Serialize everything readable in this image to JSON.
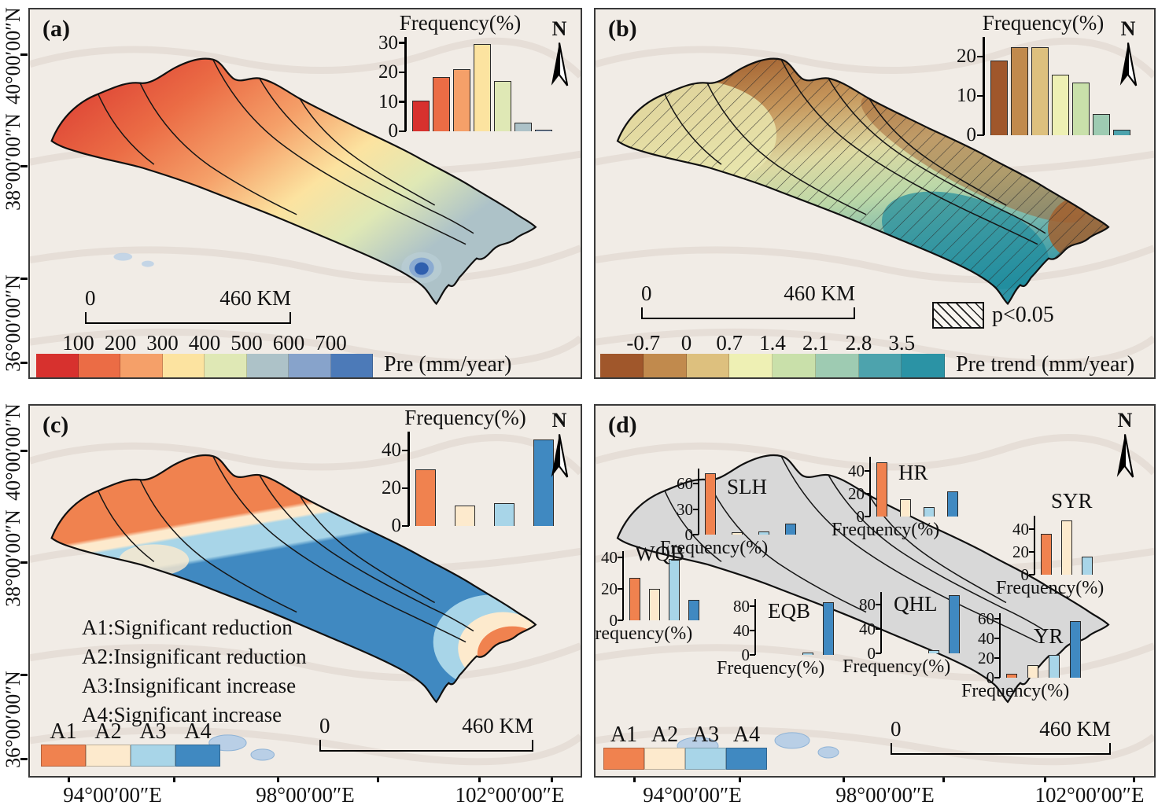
{
  "figure": {
    "north_label": "N"
  },
  "axes": {
    "lat_labels": [
      "40°00′00″N",
      "38°00′00″N",
      "36°00′00″N"
    ],
    "lon_labels": [
      "94°00′00″E",
      "98°00′00″E",
      "102°00′00″E"
    ]
  },
  "palette": {
    "pre_classes": [
      "#d7312e",
      "#eb6c45",
      "#f5a069",
      "#fce3a0",
      "#dfe8b5",
      "#adc2c8",
      "#87a3cb",
      "#4c7ab8"
    ],
    "trend_classes": [
      "#a0572b",
      "#c18a4d",
      "#ddc07e",
      "#eef0b4",
      "#c9e0aa",
      "#9ecbb2",
      "#4da3ad",
      "#2b93a5"
    ],
    "a_classes": [
      "#f0824f",
      "#fdeacd",
      "#a8d5e8",
      "#4089c1"
    ]
  },
  "panel_a": {
    "tag": "(a)",
    "freq_chart": {
      "type": "bar",
      "title": "Frequency(%)",
      "yticks": [
        0,
        10,
        20,
        30
      ],
      "ymax": 32,
      "values": [
        10.5,
        18.5,
        21,
        29.5,
        17,
        3,
        0.5
      ]
    },
    "scalebar": {
      "zero": "0",
      "dist": "460 KM"
    },
    "colorbar": {
      "ticks": [
        "100",
        "200",
        "300",
        "400",
        "500",
        "600",
        "700"
      ],
      "title": "Pre (mm/year)"
    }
  },
  "panel_b": {
    "tag": "(b)",
    "freq_chart": {
      "type": "bar",
      "title": "Frequency(%)",
      "yticks": [
        0,
        10,
        20
      ],
      "ymax": 25,
      "values": [
        19,
        22.5,
        22.5,
        15.5,
        13.5,
        5.5,
        1.5
      ]
    },
    "scalebar": {
      "zero": "0",
      "dist": "460 KM"
    },
    "sig_label": "p<0.05",
    "colorbar": {
      "ticks": [
        "-0.7",
        "0",
        "0.7",
        "1.4",
        "2.1",
        "2.8",
        "3.5"
      ],
      "title": "Pre trend (mm/year)"
    }
  },
  "panel_c": {
    "tag": "(c)",
    "freq_chart": {
      "type": "bar",
      "title": "Frequency(%)",
      "yticks": [
        0,
        20,
        40
      ],
      "ymax": 50,
      "values": [
        30,
        11,
        12,
        46
      ]
    },
    "annotations": [
      "A1:Significant reduction",
      "A2:Insignificant reduction",
      "A3:Insignificant increase",
      "A4:Significant increase"
    ],
    "legend": [
      "A1",
      "A2",
      "A3",
      "A4"
    ],
    "scalebar": {
      "zero": "0",
      "dist": "460 KM"
    }
  },
  "panel_d": {
    "tag": "(d)",
    "legend": [
      "A1",
      "A2",
      "A3",
      "A4"
    ],
    "scalebar": {
      "zero": "0",
      "dist": "460 KM"
    },
    "subbasin_charts": {
      "slh": {
        "type": "bar",
        "name": "SLH",
        "title": "Frequency(%)",
        "yticks": [
          0,
          30,
          60
        ],
        "ymax": 78,
        "values": [
          72,
          3,
          4,
          13
        ]
      },
      "hr": {
        "type": "bar",
        "name": "HR",
        "title": "Frequency(%)",
        "yticks": [
          0,
          20,
          40
        ],
        "ymax": 52,
        "values": [
          47,
          15,
          8,
          22
        ]
      },
      "syr": {
        "type": "bar",
        "name": "SYR",
        "title": "Frequency(%)",
        "yticks": [
          0,
          20,
          40
        ],
        "ymax": 52,
        "values": [
          36,
          48,
          16,
          0
        ]
      },
      "wqb": {
        "type": "bar",
        "name": "WQB",
        "title": "Frequency(%)",
        "yticks": [
          0,
          20,
          40
        ],
        "ymax": 44,
        "values": [
          27,
          20,
          39,
          13
        ]
      },
      "eqb": {
        "type": "bar",
        "name": "EQB",
        "title": "Frequency(%)",
        "yticks": [
          0,
          40,
          80
        ],
        "ymax": 92,
        "values": [
          0,
          0,
          4,
          87
        ]
      },
      "qhl": {
        "type": "bar",
        "name": "QHL",
        "title": "Frequency(%)",
        "yticks": [
          0,
          40,
          80
        ],
        "ymax": 100,
        "values": [
          0,
          0,
          5,
          95
        ]
      },
      "yr": {
        "type": "bar",
        "name": "YR",
        "title": "Frequency(%)",
        "yticks": [
          0,
          20,
          40,
          60
        ],
        "ymax": 66,
        "values": [
          4,
          13,
          23,
          58
        ]
      }
    }
  }
}
